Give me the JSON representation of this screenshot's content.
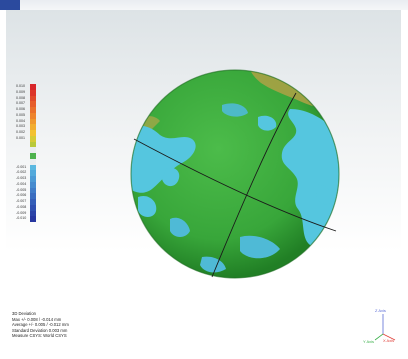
{
  "legend": {
    "top": [
      {
        "label": "0.010",
        "color": "#d8262a"
      },
      {
        "label": "0.009",
        "color": "#dd3629"
      },
      {
        "label": "0.008",
        "color": "#e14a2a"
      },
      {
        "label": "0.007",
        "color": "#e65d2b"
      },
      {
        "label": "0.006",
        "color": "#ea702c"
      },
      {
        "label": "0.005",
        "color": "#ee842d"
      },
      {
        "label": "0.004",
        "color": "#f0982e"
      },
      {
        "label": "0.003",
        "color": "#f2ad2f"
      },
      {
        "label": "0.002",
        "color": "#f3c130"
      },
      {
        "label": "0.001",
        "color": "#d6cb35"
      },
      {
        "label": "",
        "color": "#b9c93a"
      },
      {
        "label": "",
        "color": "#e9edef"
      },
      {
        "label": "",
        "color": "#4db24d"
      },
      {
        "label": "",
        "color": "#e9edef"
      }
    ],
    "bottom": [
      {
        "label": "-0.001",
        "color": "#5ab8e0"
      },
      {
        "label": "-0.002",
        "color": "#53a9db"
      },
      {
        "label": "-0.003",
        "color": "#4c9ad5"
      },
      {
        "label": "-0.004",
        "color": "#468bcf"
      },
      {
        "label": "-0.005",
        "color": "#407cc8"
      },
      {
        "label": "-0.006",
        "color": "#3a6dc0"
      },
      {
        "label": "-0.007",
        "color": "#355eb8"
      },
      {
        "label": "-0.008",
        "color": "#3050b0"
      },
      {
        "label": "-0.009",
        "color": "#2b43a8"
      },
      {
        "label": "-0.010",
        "color": "#2737a0"
      }
    ]
  },
  "info": {
    "line1": "3D Deviation",
    "line2": "Max +/- 0.008 / -0.014 mm",
    "line3": "Average +/- 0.005 / -0.012 mm",
    "line4": "Standard Deviation 0.003 mm",
    "line5": "Measure CSYS: World CSYS"
  },
  "axes": {
    "z": "Z Axis",
    "x": "X Axis",
    "y": "Y Axis"
  },
  "colors": {
    "sphere_green": "#3fae3f",
    "sphere_dark_green": "#2b8b2b",
    "patch_cyan": "#55c6df",
    "patch_brown": "#a9a245",
    "accent": "#2b4a9e"
  }
}
